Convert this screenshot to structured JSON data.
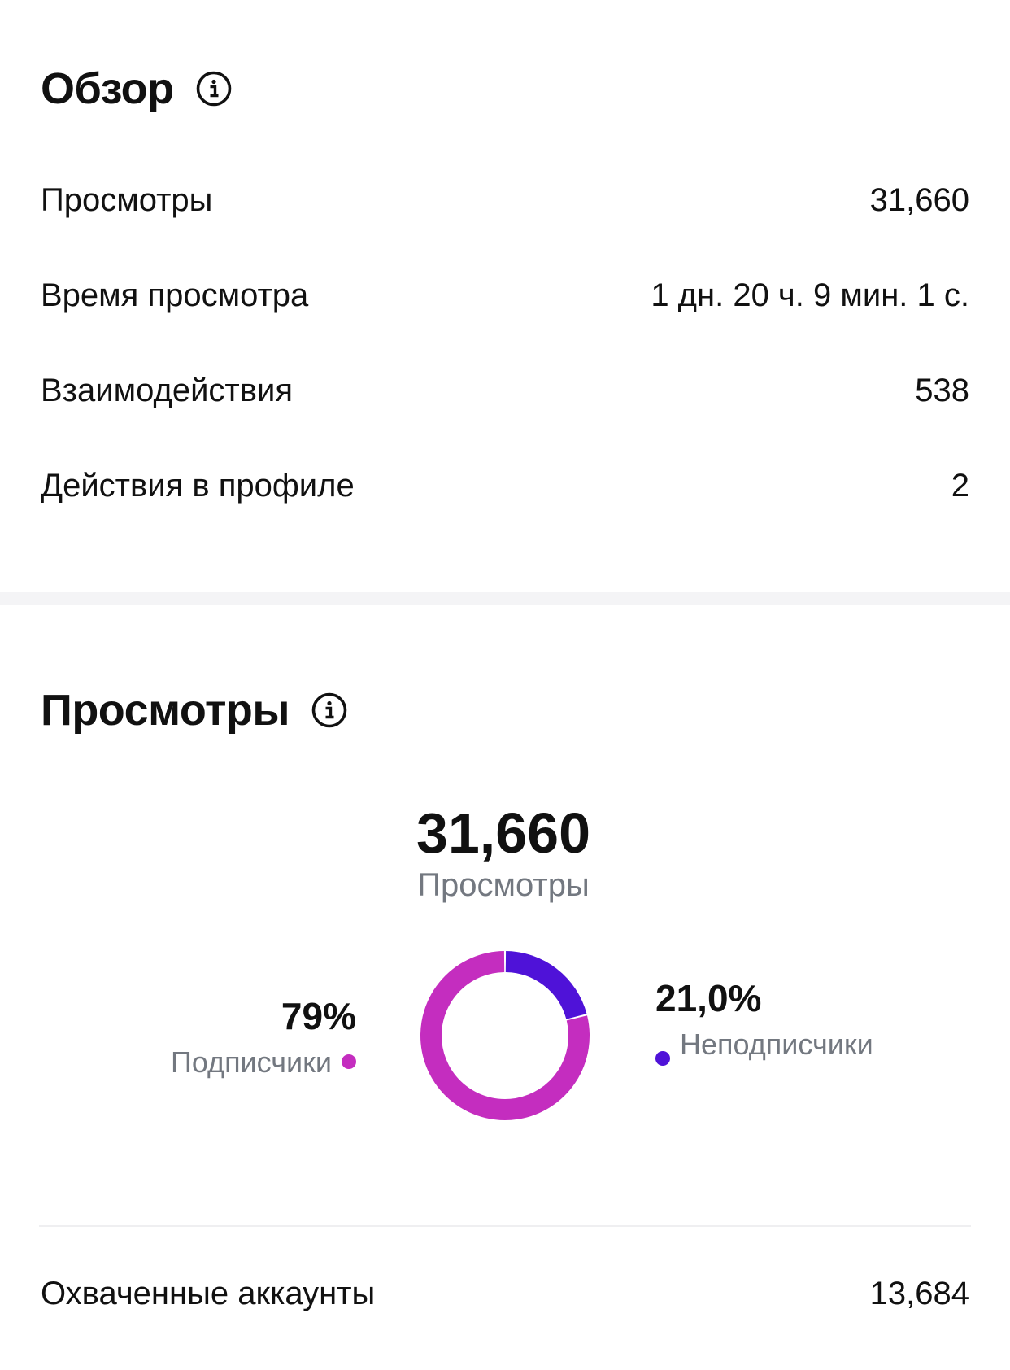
{
  "overview": {
    "title": "Обзор",
    "rows": [
      {
        "label": "Просмотры",
        "value": "31,660"
      },
      {
        "label": "Время просмотра",
        "value": "1 дн. 20 ч. 9 мин. 1 с."
      },
      {
        "label": "Взаимодействия",
        "value": "538"
      },
      {
        "label": "Действия в профиле",
        "value": "2"
      }
    ]
  },
  "views": {
    "title": "Просмотры",
    "total": "31,660",
    "total_caption": "Просмотры",
    "followers": {
      "percent_text": "79%",
      "label": "Подписчики",
      "color": "#c42dbf"
    },
    "non_followers": {
      "percent_text": "21,0%",
      "label": "Неподписчики",
      "color": "#4f12d8"
    },
    "reached": {
      "label": "Охваченные аккаунты",
      "value": "13,684"
    }
  },
  "chart_data": {
    "type": "pie",
    "categories": [
      "Подписчики",
      "Неподписчики"
    ],
    "values": [
      79,
      21.0
    ],
    "colors": [
      "#c42dbf",
      "#4f12d8"
    ]
  }
}
